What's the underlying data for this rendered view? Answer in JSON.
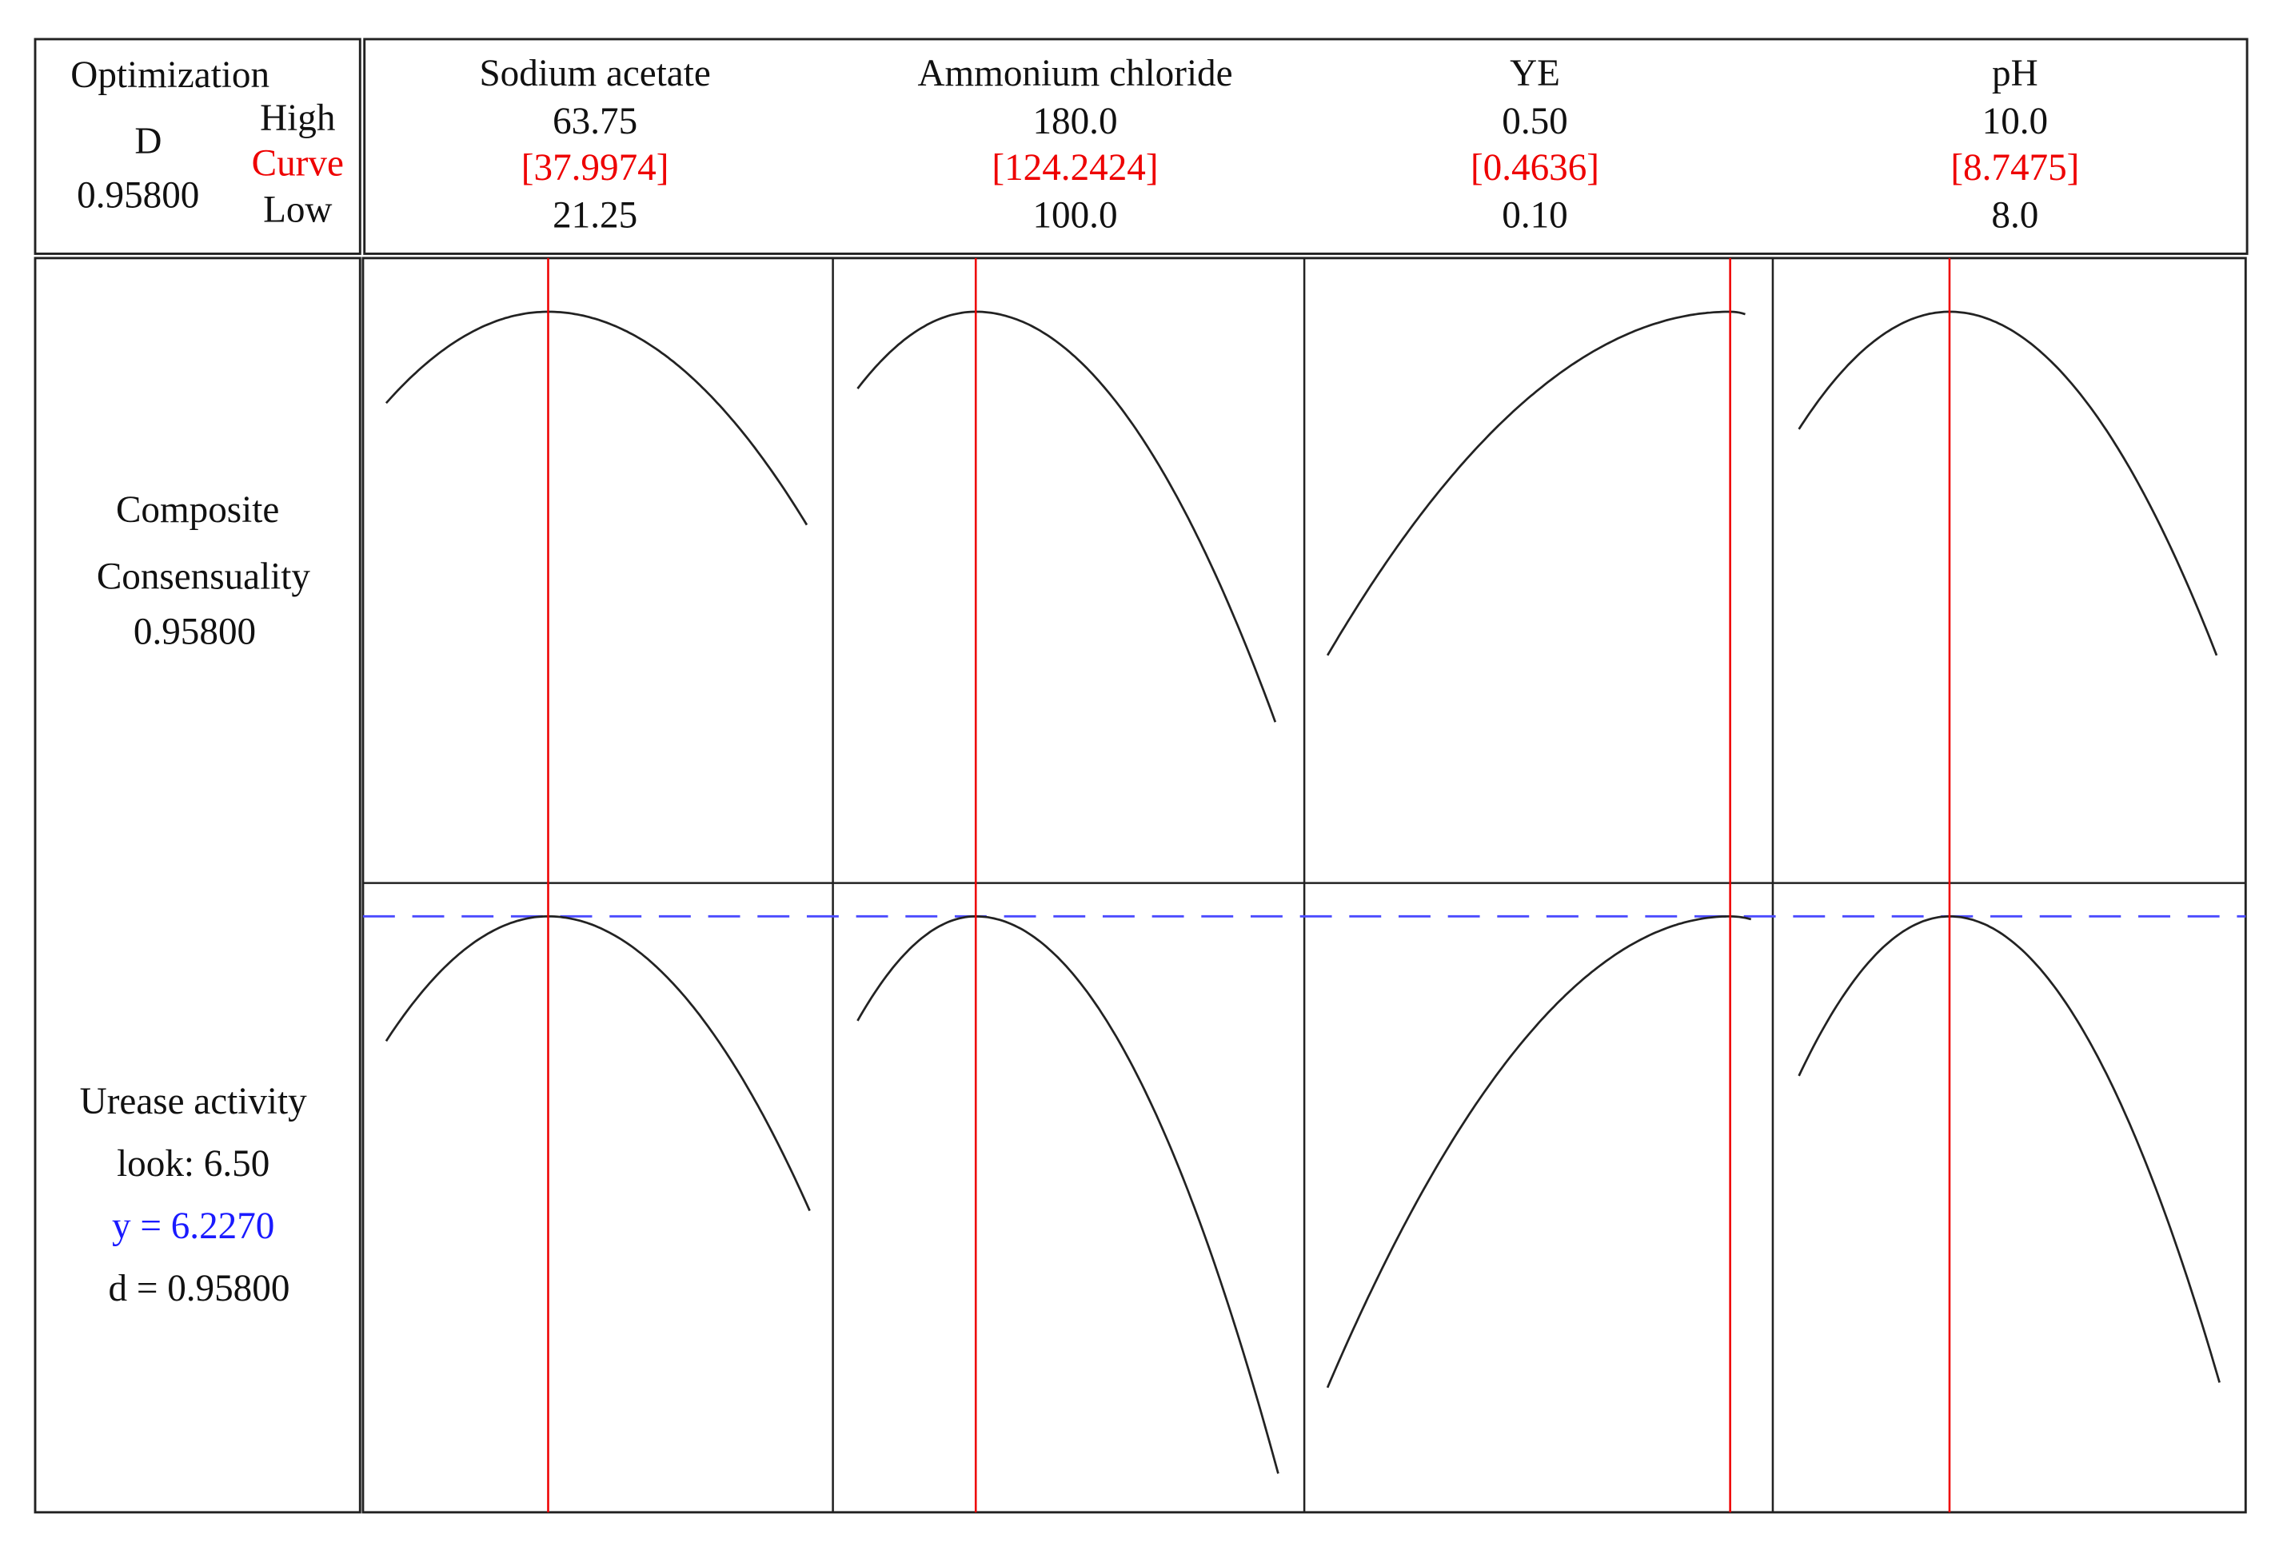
{
  "optimization": {
    "title": "Optimization",
    "d_label": "D",
    "d_value": "0.95800",
    "high": "High",
    "curve": "Curve",
    "low": "Low"
  },
  "factors": [
    {
      "name": "Sodium acetate",
      "high": "63.75",
      "current": "[37.9974]",
      "low": "21.25"
    },
    {
      "name": "Ammonium chloride",
      "high": "180.0",
      "current": "[124.2424]",
      "low": "100.0"
    },
    {
      "name": "YE",
      "high": "0.50",
      "current": "[0.4636]",
      "low": "0.10"
    },
    {
      "name": "pH",
      "high": "10.0",
      "current": "[8.7475]",
      "low": "8.0"
    }
  ],
  "responses": [
    {
      "lines": [
        "Composite",
        "Consensuality",
        "0.95800"
      ]
    },
    {
      "lines": [
        "Urease activity",
        "look: 6.50",
        "y = 6.2270",
        "d = 0.95800"
      ]
    }
  ]
}
